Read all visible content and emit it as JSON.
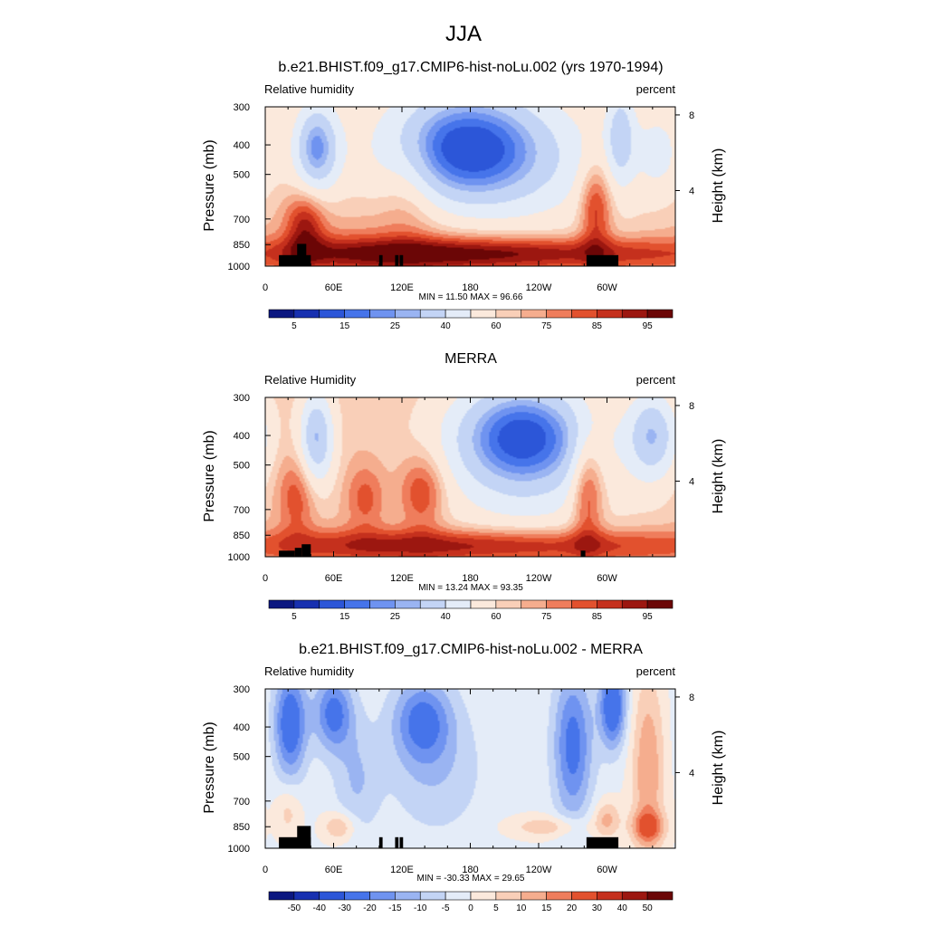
{
  "figure": {
    "title": "JJA"
  },
  "legend_colors": {
    "abs": [
      "#0b1780",
      "#1730b0",
      "#2c56d8",
      "#4674ea",
      "#6f93f0",
      "#9ab4f2",
      "#c3d4f5",
      "#e4ecf8",
      "#fbe9dc",
      "#f9cfb8",
      "#f5ad8e",
      "#ef7d5c",
      "#e2512e",
      "#c5301d",
      "#9c1710",
      "#6b0606"
    ],
    "diff": [
      "#0b1780",
      "#1730b0",
      "#2c56d8",
      "#4674ea",
      "#6f93f0",
      "#9ab4f2",
      "#c3d4f5",
      "#e4ecf8",
      "#fbe9dc",
      "#f9cfb8",
      "#f5ad8e",
      "#ef7d5c",
      "#e2512e",
      "#c5301d",
      "#9c1710",
      "#6b0606"
    ]
  },
  "chart_data": [
    {
      "type": "heatmap",
      "title": "b.e21.BHIST.f09_g17.CMIP6-hist-noLu.002 (yrs 1970-1994)",
      "variable_label": "Relative humidity",
      "units_label": "percent",
      "ylabel": "Pressure (mb)",
      "ylabel_right": "Height (km)",
      "xticks": [
        "0",
        "60E",
        "120E",
        "180",
        "120W",
        "60W"
      ],
      "xtick_values": [
        0,
        60,
        120,
        180,
        240,
        300
      ],
      "xlim": [
        0,
        360
      ],
      "yticks": [
        "300",
        "400",
        "500",
        "700",
        "850",
        "1000"
      ],
      "ytick_values": [
        300,
        400,
        500,
        700,
        850,
        1000
      ],
      "ylim": [
        1000,
        300
      ],
      "yscale": "log",
      "right_ticks": [
        "8",
        "4"
      ],
      "right_tick_values": [
        8,
        4
      ],
      "min": 11.5,
      "max": 96.66,
      "minmax_text": "MIN = 11.50  MAX = 96.66",
      "colorbar": {
        "levels": [
          5,
          10,
          15,
          20,
          25,
          30,
          40,
          50,
          60,
          65,
          70,
          75,
          80,
          85,
          90,
          95
        ],
        "labels": [
          "5",
          "15",
          "25",
          "40",
          "60",
          "75",
          "85",
          "95"
        ],
        "label_edges": [
          1,
          3,
          5,
          7,
          9,
          11,
          13,
          15
        ]
      },
      "field": {
        "base": 62,
        "features": [
          {
            "lon": 175,
            "p": 400,
            "amp": -42,
            "wx": 48,
            "wy": 0.3
          },
          {
            "lon": 45,
            "p": 410,
            "amp": -38,
            "wx": 14,
            "wy": 0.24
          },
          {
            "lon": 312,
            "p": 370,
            "amp": -25,
            "wx": 9,
            "wy": 0.25
          },
          {
            "lon": 345,
            "p": 420,
            "amp": -14,
            "wx": 14,
            "wy": 0.22
          },
          {
            "lon": 215,
            "p": 470,
            "amp": -16,
            "wx": 70,
            "wy": 0.35
          },
          {
            "lon": 180,
            "p": 910,
            "amp": 30,
            "wx": 150,
            "wy": 0.09
          },
          {
            "lon": 35,
            "p": 730,
            "amp": 22,
            "wx": 12,
            "wy": 0.18
          },
          {
            "lon": 290,
            "p": 640,
            "amp": 24,
            "wx": 10,
            "wy": 0.24
          },
          {
            "lon": 125,
            "p": 560,
            "amp": 10,
            "wx": 18,
            "wy": 0.3
          },
          {
            "lon": 100,
            "p": 860,
            "amp": 8,
            "wx": 80,
            "wy": 0.25
          }
        ]
      },
      "terrain": [
        [
          12,
          40,
          920
        ],
        [
          28,
          36,
          845
        ],
        [
          100,
          103,
          920
        ],
        [
          114,
          117,
          920
        ],
        [
          118,
          121,
          920
        ],
        [
          282,
          310,
          920
        ]
      ]
    },
    {
      "type": "heatmap",
      "title": "MERRA",
      "variable_label": "Relative Humidity",
      "units_label": "percent",
      "ylabel": "Pressure (mb)",
      "ylabel_right": "Height (km)",
      "xticks": [
        "0",
        "60E",
        "120E",
        "180",
        "120W",
        "60W"
      ],
      "xtick_values": [
        0,
        60,
        120,
        180,
        240,
        300
      ],
      "xlim": [
        0,
        360
      ],
      "yticks": [
        "300",
        "400",
        "500",
        "700",
        "850",
        "1000"
      ],
      "ytick_values": [
        300,
        400,
        500,
        700,
        850,
        1000
      ],
      "ylim": [
        1000,
        300
      ],
      "yscale": "log",
      "right_ticks": [
        "8",
        "4"
      ],
      "right_tick_values": [
        8,
        4
      ],
      "min": 13.24,
      "max": 93.35,
      "minmax_text": "MIN = 13.24  MAX = 93.35",
      "colorbar": {
        "levels": [
          5,
          10,
          15,
          20,
          25,
          30,
          40,
          50,
          60,
          65,
          70,
          75,
          80,
          85,
          90,
          95
        ],
        "labels": [
          "5",
          "15",
          "25",
          "40",
          "60",
          "75",
          "85",
          "95"
        ],
        "label_edges": [
          1,
          3,
          5,
          7,
          9,
          11,
          13,
          15
        ]
      },
      "field": {
        "base": 64,
        "features": [
          {
            "lon": 225,
            "p": 395,
            "amp": -45,
            "wx": 42,
            "wy": 0.28
          },
          {
            "lon": 45,
            "p": 410,
            "amp": -35,
            "wx": 11,
            "wy": 0.26
          },
          {
            "lon": 340,
            "p": 400,
            "amp": -32,
            "wx": 16,
            "wy": 0.24
          },
          {
            "lon": 230,
            "p": 560,
            "amp": -14,
            "wx": 60,
            "wy": 0.4
          },
          {
            "lon": 180,
            "p": 920,
            "amp": 26,
            "wx": 160,
            "wy": 0.09
          },
          {
            "lon": 138,
            "p": 610,
            "amp": 20,
            "wx": 14,
            "wy": 0.2
          },
          {
            "lon": 88,
            "p": 640,
            "amp": 14,
            "wx": 12,
            "wy": 0.18
          },
          {
            "lon": 28,
            "p": 630,
            "amp": 16,
            "wx": 12,
            "wy": 0.22
          },
          {
            "lon": 283,
            "p": 600,
            "amp": 24,
            "wx": 10,
            "wy": 0.3
          }
        ]
      },
      "terrain": [
        [
          12,
          26,
          955
        ],
        [
          26,
          32,
          935
        ],
        [
          32,
          40,
          910
        ],
        [
          277,
          281,
          955
        ]
      ]
    },
    {
      "type": "heatmap",
      "title": "b.e21.BHIST.f09_g17.CMIP6-hist-noLu.002 - MERRA",
      "variable_label": "Relative humidity",
      "units_label": "percent",
      "ylabel": "Pressure (mb)",
      "ylabel_right": "Height (km)",
      "xticks": [
        "0",
        "60E",
        "120E",
        "180",
        "120W",
        "60W"
      ],
      "xtick_values": [
        0,
        60,
        120,
        180,
        240,
        300
      ],
      "xlim": [
        0,
        360
      ],
      "yticks": [
        "300",
        "400",
        "500",
        "700",
        "850",
        "1000"
      ],
      "ytick_values": [
        300,
        400,
        500,
        700,
        850,
        1000
      ],
      "ylim": [
        1000,
        300
      ],
      "yscale": "log",
      "right_ticks": [
        "8",
        "4"
      ],
      "right_tick_values": [
        8,
        4
      ],
      "min": -30.33,
      "max": 29.65,
      "minmax_text": "MIN = -30.33  MAX = 29.65",
      "colorbar": {
        "levels": [
          -50,
          -40,
          -30,
          -20,
          -15,
          -10,
          -5,
          0,
          5,
          10,
          15,
          20,
          30,
          40,
          50
        ],
        "labels": [
          "-50",
          "-40",
          "-30",
          "-20",
          "-15",
          "-10",
          "-5",
          "0",
          "5",
          "10",
          "15",
          "20",
          "30",
          "40",
          "50"
        ],
        "label_edges": [
          1,
          2,
          3,
          4,
          5,
          6,
          7,
          8,
          9,
          10,
          11,
          12,
          13,
          14,
          15
        ]
      },
      "field": {
        "base": -1,
        "features": [
          {
            "lon": 22,
            "p": 390,
            "amp": -26,
            "wx": 10,
            "wy": 0.28
          },
          {
            "lon": 60,
            "p": 360,
            "amp": -22,
            "wx": 12,
            "wy": 0.2
          },
          {
            "lon": 138,
            "p": 380,
            "amp": -20,
            "wx": 18,
            "wy": 0.22
          },
          {
            "lon": 270,
            "p": 460,
            "amp": -22,
            "wx": 12,
            "wy": 0.4
          },
          {
            "lon": 305,
            "p": 340,
            "amp": -28,
            "wx": 8,
            "wy": 0.22
          },
          {
            "lon": 80,
            "p": 600,
            "amp": -9,
            "wx": 14,
            "wy": 0.3
          },
          {
            "lon": 150,
            "p": 560,
            "amp": -8,
            "wx": 30,
            "wy": 0.35
          },
          {
            "lon": 336,
            "p": 560,
            "amp": 16,
            "wx": 10,
            "wy": 0.5
          },
          {
            "lon": 336,
            "p": 850,
            "amp": 18,
            "wx": 10,
            "wy": 0.08
          },
          {
            "lon": 65,
            "p": 850,
            "amp": 12,
            "wx": 10,
            "wy": 0.08
          },
          {
            "lon": 250,
            "p": 850,
            "amp": 10,
            "wx": 25,
            "wy": 0.06
          },
          {
            "lon": 20,
            "p": 760,
            "amp": 8,
            "wx": 8,
            "wy": 0.14
          },
          {
            "lon": 300,
            "p": 800,
            "amp": 12,
            "wx": 8,
            "wy": 0.1
          }
        ]
      },
      "terrain": [
        [
          12,
          40,
          920
        ],
        [
          28,
          40,
          845
        ],
        [
          100,
          103,
          920
        ],
        [
          114,
          117,
          920
        ],
        [
          118,
          121,
          920
        ],
        [
          282,
          310,
          920
        ]
      ]
    }
  ]
}
